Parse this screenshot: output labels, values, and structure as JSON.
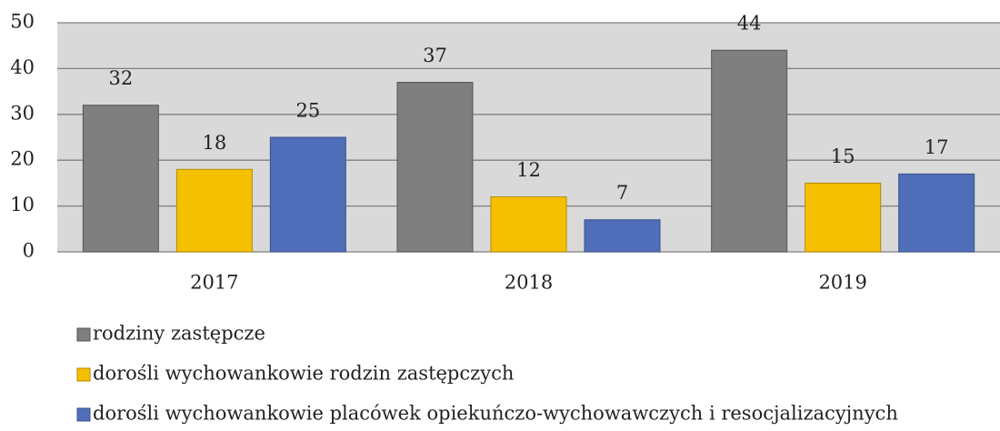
{
  "chart_data": {
    "type": "bar",
    "categories": [
      "2017",
      "2018",
      "2019"
    ],
    "series": [
      {
        "name": "rodziny zastępcze",
        "color": "#7f7f7f",
        "values": [
          32,
          37,
          44
        ]
      },
      {
        "name": "dorośli wychowankowie rodzin zastępczych",
        "color": "#f5c000",
        "values": [
          18,
          12,
          15
        ]
      },
      {
        "name": "dorośli wychowankowie placówek opiekuńczo-wychowawczych i resocjalizacyjnych",
        "color": "#4f6db8",
        "values": [
          25,
          7,
          17
        ]
      }
    ],
    "ylim": [
      0,
      50
    ],
    "yticks": [
      0,
      10,
      20,
      30,
      40,
      50
    ],
    "grid": true,
    "legend": "bottom"
  }
}
